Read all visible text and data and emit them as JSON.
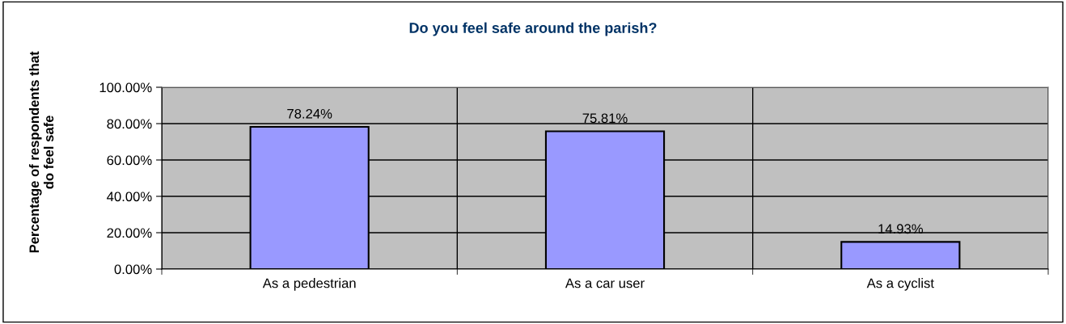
{
  "chart_data": {
    "type": "bar",
    "title": "Do you feel safe around the parish?",
    "ylabel": "Percentage of respondents that\ndo feel safe",
    "categories": [
      "As a pedestrian",
      "As a car user",
      "As a cyclist"
    ],
    "values": [
      78.24,
      75.81,
      14.93
    ],
    "color": "#9999ff",
    "value_labels": [
      "78.24%",
      "75.81%",
      "14.93%"
    ],
    "ylim": [
      0,
      100
    ],
    "yticks": [
      {
        "value": 0,
        "label": "0.00%"
      },
      {
        "value": 20,
        "label": "20.00%"
      },
      {
        "value": 40,
        "label": "40.00%"
      },
      {
        "value": 60,
        "label": "60.00%"
      },
      {
        "value": 80,
        "label": "80.00%"
      },
      {
        "value": 100,
        "label": "100.00%"
      }
    ],
    "grid": true,
    "legend": false
  }
}
